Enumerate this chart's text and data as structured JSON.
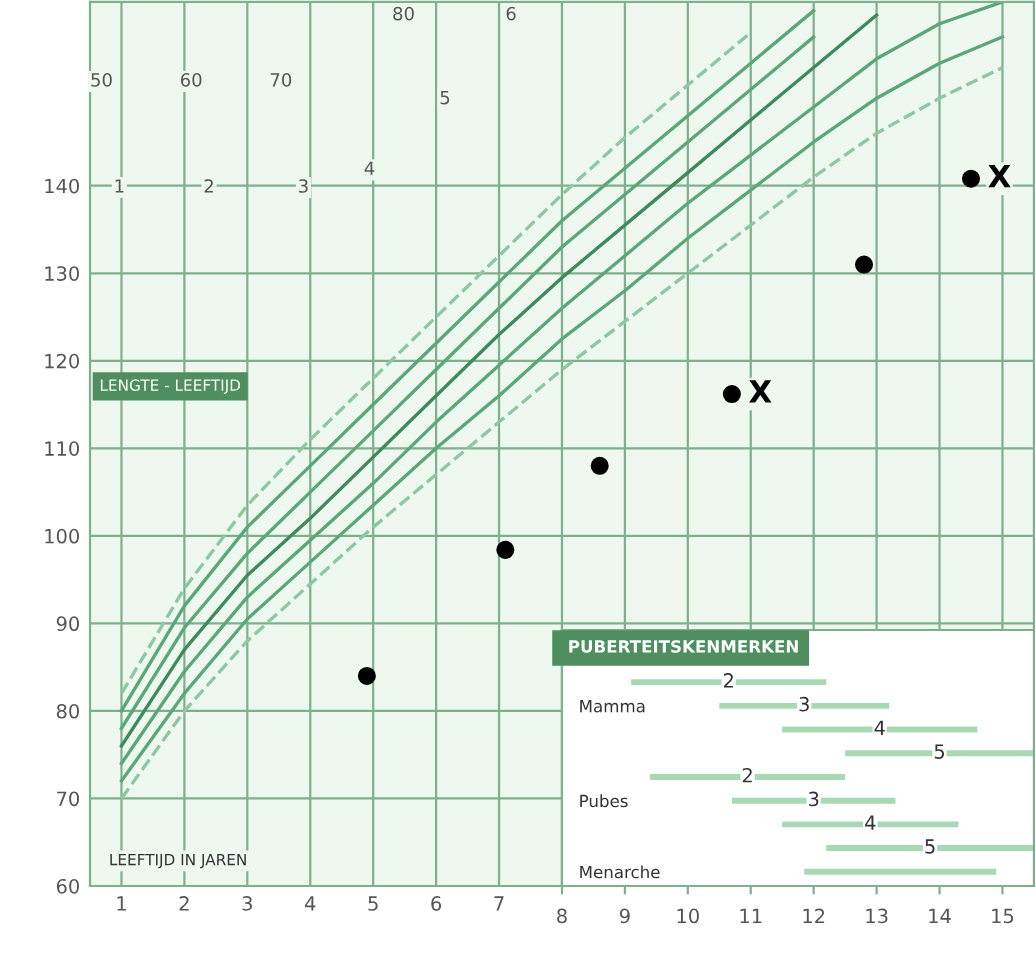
{
  "chart_data": [
    {
      "type": "line",
      "xlabel": "LEEFTIJD IN JAREN",
      "ylabel": "LENGTE - LEEFTIJD",
      "xlim": [
        0.5,
        15.5
      ],
      "ylim": [
        60,
        161
      ],
      "xticks": [
        1,
        2,
        3,
        4,
        5,
        6,
        7,
        {
          "value": 8,
          "label": null
        },
        {
          "value": 9,
          "label": null
        },
        {
          "value": 10,
          "label": null
        },
        {
          "value": 11,
          "label": null
        },
        {
          "value": 12,
          "label": null
        },
        {
          "value": 13,
          "label": null
        },
        {
          "value": 14,
          "label": null
        },
        {
          "value": 15,
          "label": null
        }
      ],
      "yticks": [
        60,
        70,
        80,
        90,
        100,
        110,
        120,
        130,
        140
      ],
      "grid": true,
      "legend": false,
      "annotations": [
        "50",
        "60",
        "70",
        "80",
        "1",
        "2",
        "3",
        "4",
        "5",
        "6",
        {
          "text": "X",
          "x": 10.7,
          "y": 116.2
        },
        {
          "text": "X",
          "x": 14.5,
          "y": 140.8
        }
      ],
      "series": [
        {
          "color": "#8cc8a0",
          "line_style": "dashed",
          "x": [
            1,
            2,
            3,
            4,
            5,
            6,
            7,
            8,
            9,
            10,
            11,
            12,
            13,
            14,
            15
          ],
          "values": [
            70,
            80,
            88,
            94.5,
            101,
            107,
            113,
            119,
            124.5,
            130,
            135.5,
            141,
            146,
            150,
            153.5
          ]
        },
        {
          "color": "#5aa878",
          "line_style": "solid",
          "x": [
            1,
            2,
            3,
            4,
            5,
            6,
            7,
            8,
            9,
            10,
            11,
            12,
            13,
            14,
            15
          ],
          "values": [
            72,
            82,
            90.5,
            97,
            103.5,
            110,
            116,
            122.5,
            128,
            134,
            139.5,
            145,
            150,
            154,
            157
          ]
        },
        {
          "color": "#5aa878",
          "line_style": "solid",
          "x": [
            1,
            2,
            3,
            4,
            5,
            6,
            7,
            8,
            9,
            10,
            11,
            12,
            13,
            14,
            15
          ],
          "values": [
            74,
            84.5,
            93,
            99.5,
            106,
            113,
            119.5,
            126,
            132,
            138,
            143.5,
            149,
            154.5,
            158.5,
            161
          ]
        },
        {
          "color": "#3d8a5c",
          "line_style": "solid",
          "x": [
            1,
            2,
            3,
            4,
            5,
            6,
            7,
            8,
            9,
            10,
            11,
            12,
            13
          ],
          "values": [
            76,
            87,
            95.5,
            102,
            109,
            116,
            123,
            129.5,
            135.5,
            141.5,
            147.5,
            153.5,
            159.5
          ]
        },
        {
          "color": "#5aa878",
          "line_style": "solid",
          "x": [
            1,
            2,
            3,
            4,
            5,
            6,
            7,
            8,
            9,
            10,
            11,
            12
          ],
          "values": [
            78,
            89.5,
            98,
            105,
            112,
            119,
            126,
            133,
            139,
            145,
            151,
            157
          ]
        },
        {
          "color": "#5aa878",
          "line_style": "solid",
          "x": [
            1,
            2,
            3,
            4,
            5,
            6,
            7,
            8,
            9,
            10,
            11,
            12
          ],
          "values": [
            80,
            92,
            101,
            108,
            115,
            122,
            129,
            136,
            142,
            148,
            154,
            160
          ]
        },
        {
          "color": "#8cc8a0",
          "line_style": "dashed",
          "x": [
            1,
            2,
            3,
            4,
            5,
            6,
            7,
            8,
            9,
            10,
            11
          ],
          "values": [
            82,
            94,
            103.5,
            111,
            118,
            125,
            132,
            139,
            145.5,
            151.5,
            157.5
          ]
        },
        {
          "type": "scatter",
          "color": "#000000",
          "marker": "circle",
          "x": [
            4.9,
            7.1,
            8.6,
            10.7,
            12.8,
            14.5
          ],
          "values": [
            84,
            98.4,
            108,
            116.2,
            131,
            140.8
          ]
        }
      ]
    },
    {
      "type": "bar",
      "orientation": "horizontal",
      "title": "PUBERTEITSKENMERKEN",
      "xlim": [
        8,
        15.5
      ],
      "xticks": [
        8,
        9,
        10,
        11,
        12,
        13,
        14,
        15
      ],
      "tick_labels": "x",
      "color": "#a8d8b4",
      "categories": [
        null,
        "Mamma",
        null,
        null,
        null,
        "Pubes",
        null,
        null,
        "Menarche"
      ],
      "base": [
        9.1,
        10.5,
        11.5,
        12.5,
        9.4,
        10.7,
        11.5,
        12.2,
        11.85
      ],
      "values": [
        3.1,
        2.7,
        3.1,
        3.0,
        3.1,
        2.6,
        2.8,
        3.3,
        3.05
      ],
      "annotations": [
        "2",
        "3",
        "4",
        "5",
        "2",
        "3",
        "4",
        "5"
      ]
    }
  ]
}
